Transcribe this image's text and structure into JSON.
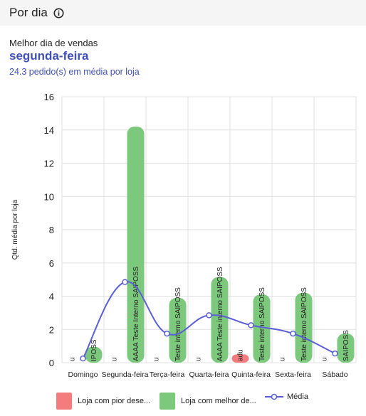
{
  "header": {
    "title": "Por dia",
    "info_icon": "info-circle-icon"
  },
  "summary": {
    "label": "Melhor dia de vendas",
    "best_day": "segunda-feira",
    "average": "24.3 pedido(s) em média por loja"
  },
  "colors": {
    "worst": "#f47c7c",
    "best": "#7cc87c",
    "average": "#5a5fd6",
    "accent": "#3f51b5"
  },
  "chart_data": {
    "type": "bar",
    "ylabel": "Qtd. média por loja",
    "ylim": [
      0,
      16
    ],
    "yticks": [
      0,
      2,
      4,
      6,
      8,
      10,
      12,
      14,
      16
    ],
    "categories": [
      "Domingo",
      "Segunda-feira",
      "Terça-feira",
      "Quarta-feira",
      "Quinta-feira",
      "Sexta-feira",
      "Sábado"
    ],
    "series": [
      {
        "name": "Loja com pior dese...",
        "values": [
          0,
          0,
          0,
          0,
          0.5,
          0,
          0
        ],
        "bar_labels": [
          "u",
          "u",
          "u",
          "u",
          "adu",
          "u",
          "u"
        ]
      },
      {
        "name": "Loja com melhor de...",
        "values": [
          0.95,
          14.2,
          3.9,
          5.15,
          4.1,
          4.2,
          1.75
        ],
        "bar_labels": [
          "IPOSS",
          "AAAA Teste Interno SAIPOSS",
          "Teste interno SAIPOSS",
          "AAAA Teste interno SAIPOSS",
          "Teste interno SAIPOSS",
          "Teste interno SAIPOSS",
          "SAIPOSS"
        ]
      },
      {
        "name": "Média",
        "values": [
          0.25,
          4.85,
          1.75,
          2.85,
          2.25,
          1.75,
          0.55
        ]
      }
    ]
  }
}
